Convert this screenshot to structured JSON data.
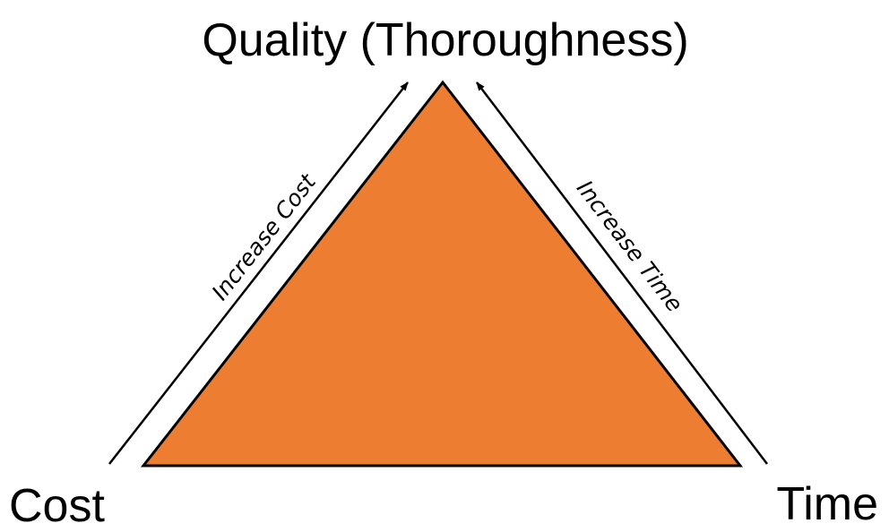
{
  "diagram": {
    "top_label": "Quality (Thoroughness)",
    "bottom_left_label": "Cost",
    "bottom_right_label": "Time",
    "left_edge_label": "Increase Cost",
    "right_edge_label": "Increase Time",
    "triangle_fill": "#ED7D31",
    "line_color": "#000000"
  }
}
